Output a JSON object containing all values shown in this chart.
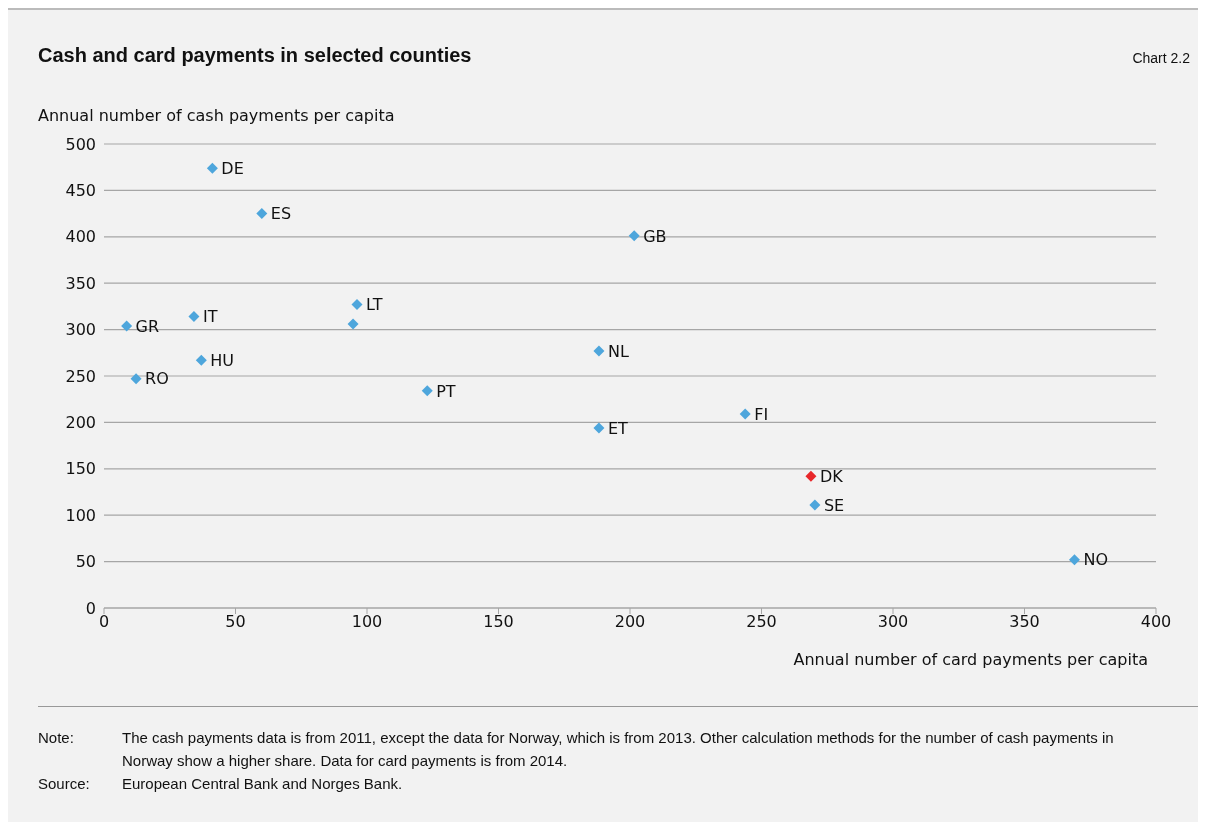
{
  "chart_data": {
    "type": "scatter",
    "title": "Cash and card payments in selected counties",
    "xlabel": "Annual number of card payments per capita",
    "ylabel": "Annual number of cash payments per capita",
    "x": [
      41.2,
      60,
      201.6,
      96.2,
      94.7,
      8.6,
      34.2,
      37,
      12.2,
      122.9,
      188.2,
      188.2,
      243.8,
      268.8,
      270.3,
      369
    ],
    "values": [
      474,
      425,
      401,
      327,
      306,
      304,
      314,
      267,
      247,
      234,
      277,
      194,
      209,
      142,
      111,
      52
    ],
    "colors": [
      "#4ea6dc",
      "#4ea6dc",
      "#4ea6dc",
      "#4ea6dc",
      "#4ea6dc",
      "#4ea6dc",
      "#4ea6dc",
      "#4ea6dc",
      "#4ea6dc",
      "#4ea6dc",
      "#4ea6dc",
      "#4ea6dc",
      "#4ea6dc",
      "#e8272a",
      "#4ea6dc",
      "#4ea6dc"
    ],
    "marker": "diamond",
    "grid": "y",
    "xlim": [
      0,
      400
    ],
    "xticks": [
      0,
      50,
      100,
      150,
      200,
      250,
      300,
      350,
      400
    ],
    "ylim": [
      0,
      500
    ],
    "yticks": [
      0,
      50,
      100,
      150,
      200,
      250,
      300,
      350,
      400,
      450,
      500
    ],
    "annotations": [
      "Chart 2.2",
      {
        "text": "DE",
        "x": 41.2,
        "y": 474
      },
      {
        "text": "ES",
        "x": 60,
        "y": 425
      },
      {
        "text": "GB",
        "x": 201.6,
        "y": 401
      },
      {
        "text": "LT",
        "x": 96.2,
        "y": 327
      },
      {
        "text": "GR",
        "x": 8.6,
        "y": 304
      },
      {
        "text": "IT",
        "x": 34.2,
        "y": 314
      },
      {
        "text": "HU",
        "x": 37,
        "y": 267
      },
      {
        "text": "RO",
        "x": 12.2,
        "y": 247
      },
      {
        "text": "PT",
        "x": 122.9,
        "y": 234
      },
      {
        "text": "NL",
        "x": 188.2,
        "y": 277
      },
      {
        "text": "ET",
        "x": 188.2,
        "y": 194
      },
      {
        "text": "FI",
        "x": 243.8,
        "y": 209
      },
      {
        "text": "DK",
        "x": 268.8,
        "y": 142
      },
      {
        "text": "SE",
        "x": 270.3,
        "y": 111
      },
      {
        "text": "NO",
        "x": 369,
        "y": 52
      },
      "Note: The cash payments data is from 2011, except the data for Norway, which is from 2013. Other calculation methods for the number of cash payments in Norway show a higher share. Data for card payments is from 2014.",
      "Source: European Central Bank and Norges Bank."
    ]
  }
}
